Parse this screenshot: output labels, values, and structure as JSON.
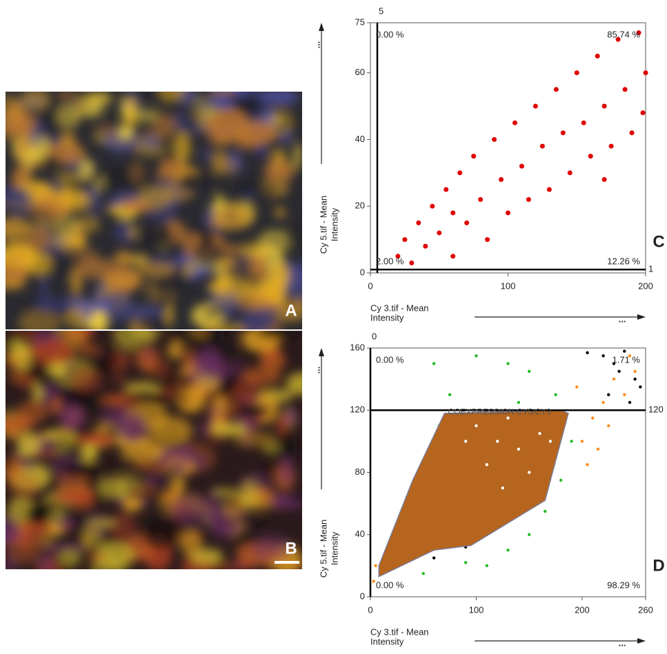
{
  "images": [
    {
      "label": "A"
    },
    {
      "label": "B"
    }
  ],
  "chart_data": [
    {
      "type": "scatter",
      "panel": "C",
      "x_label": [
        "Cy 3.tif - Mean",
        "Intensity"
      ],
      "y_label": [
        "Cy 5.tif - Mean",
        "Intensity"
      ],
      "x_more": "...",
      "y_more": "...",
      "xlim": [
        0,
        200
      ],
      "ylim": [
        0,
        75
      ],
      "xticks": [
        0,
        100,
        200
      ],
      "yticks": [
        0,
        20,
        40,
        60,
        75
      ],
      "thresholds": {
        "x": 5,
        "y": 1
      },
      "quadrants": {
        "upper_left": "0.00 %",
        "upper_right": "85.74 %",
        "lower_left": "2.00 %",
        "lower_right": "12.26 %"
      },
      "series": [
        {
          "color": "#e00000",
          "x": [
            20,
            25,
            30,
            35,
            40,
            45,
            50,
            55,
            60,
            60,
            65,
            70,
            75,
            80,
            85,
            90,
            95,
            100,
            105,
            110,
            115,
            120,
            125,
            130,
            135,
            140,
            145,
            150,
            155,
            160,
            165,
            170,
            175,
            180,
            185,
            190,
            195,
            200,
            198,
            170
          ],
          "y": [
            5,
            10,
            3,
            15,
            8,
            20,
            12,
            25,
            5,
            18,
            30,
            15,
            35,
            22,
            10,
            40,
            28,
            18,
            45,
            32,
            22,
            50,
            38,
            25,
            55,
            42,
            30,
            60,
            45,
            35,
            65,
            50,
            38,
            70,
            55,
            42,
            72,
            60,
            48,
            28
          ]
        }
      ]
    },
    {
      "type": "scatter",
      "panel": "D",
      "x_label": [
        "Cy 3.tif - Mean",
        "Intensity"
      ],
      "y_label": [
        "Cy 5.tif - Mean",
        "Intensity"
      ],
      "x_more": "...",
      "y_more": "...",
      "xlim": [
        0,
        260
      ],
      "ylim": [
        0,
        160
      ],
      "xticks": [
        0,
        100,
        200,
        260
      ],
      "yticks": [
        0,
        40,
        80,
        120,
        160
      ],
      "thresholds": {
        "x": 0,
        "y": 120
      },
      "quadrants": {
        "upper_left": "0.00 %",
        "upper_right": "1.71 %",
        "lower_left": "0.00 %",
        "lower_right": "98.29 %"
      },
      "gate": {
        "name": "COEXPRESSION CY5/CY3",
        "color": "#b5651d",
        "x": [
          8,
          60,
          95,
          165,
          187,
          180,
          70,
          40,
          8
        ],
        "y": [
          13,
          30,
          33,
          62,
          118,
          120,
          118,
          75,
          20
        ]
      },
      "series": [
        {
          "color": "#22bb22",
          "x": [
            15,
            25,
            35,
            45,
            55,
            65,
            75,
            60,
            100,
            130,
            150,
            175,
            190,
            180,
            165,
            150,
            130,
            110,
            90,
            50,
            170,
            140
          ],
          "y": [
            25,
            45,
            60,
            80,
            95,
            110,
            130,
            150,
            155,
            150,
            145,
            130,
            100,
            75,
            55,
            40,
            30,
            20,
            22,
            15,
            110,
            125
          ]
        },
        {
          "color": "#ff8c1a",
          "x": [
            3,
            5,
            200,
            210,
            220,
            230,
            240,
            250,
            215,
            205,
            225,
            245,
            195
          ],
          "y": [
            10,
            20,
            100,
            115,
            125,
            140,
            130,
            145,
            95,
            85,
            110,
            155,
            135
          ]
        },
        {
          "color": "#000000",
          "x": [
            220,
            230,
            240,
            250,
            255,
            245,
            235,
            205,
            90,
            60,
            225
          ],
          "y": [
            155,
            150,
            158,
            140,
            135,
            125,
            145,
            157,
            32,
            25,
            130
          ]
        },
        {
          "color": "#ffffff",
          "over_gate": true,
          "x": [
            100,
            120,
            140,
            160,
            110,
            130,
            150,
            170,
            90,
            125
          ],
          "y": [
            110,
            100,
            95,
            105,
            85,
            115,
            80,
            100,
            100,
            70
          ]
        }
      ]
    }
  ]
}
